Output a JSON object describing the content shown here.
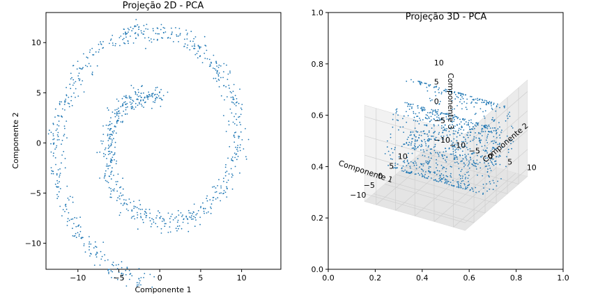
{
  "chart_data": [
    {
      "type": "scatter",
      "title": "Projeção 2D - PCA",
      "xlabel": "Componente 1",
      "ylabel": "Componente 2",
      "xlim": [
        -13.9,
        14.8
      ],
      "ylim": [
        -12.6,
        13.0
      ],
      "xticks": [
        -10,
        -5,
        0,
        5,
        10
      ],
      "yticks": [
        -10,
        -5,
        0,
        5,
        10
      ],
      "point_color": "#1f77b4",
      "description_of_shape": "swiss-roll spiral",
      "spiral_t_range": [
        4.7,
        14.1
      ],
      "spiral_noise": 0.9,
      "n_points": 1000
    },
    {
      "type": "scatter",
      "title": "Projeção 3D - PCA",
      "xlabel": "Componente 1",
      "ylabel": "Componente 2",
      "zlabel": "Componente 3",
      "x_ticks": [
        -10,
        -5,
        0,
        5,
        10
      ],
      "y_ticks": [
        -10,
        -5,
        0,
        5,
        10
      ],
      "z_ticks": [
        -10,
        -5,
        0,
        5,
        10
      ],
      "xlim": [
        -14,
        14
      ],
      "ylim": [
        -13,
        13
      ],
      "zlim": [
        -12,
        13
      ],
      "outer_axes_xticks": [
        "0.0",
        "0.2",
        "0.4",
        "0.6",
        "0.8",
        "1.0"
      ],
      "outer_axes_yticks": [
        "0.0",
        "0.2",
        "0.4",
        "0.6",
        "0.8",
        "1.0"
      ],
      "point_color": "#1f77b4",
      "n_points": 1000
    }
  ]
}
